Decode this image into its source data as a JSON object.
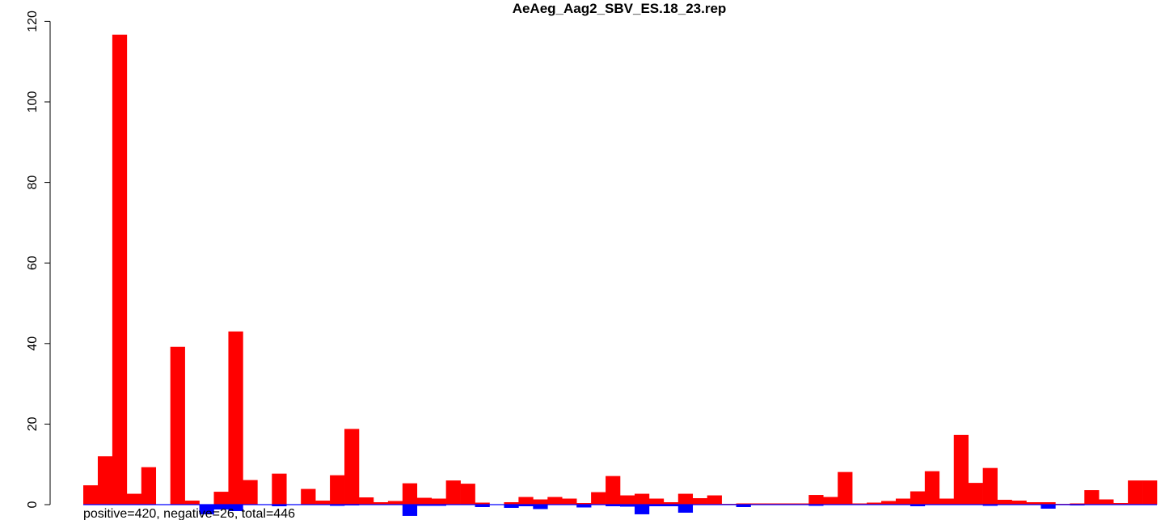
{
  "chart_data": {
    "type": "bar",
    "title": "AeAeg_Aag2_SBV_ES.18_23.rep",
    "xlabel": "",
    "ylabel": "",
    "ylim": [
      -3,
      120
    ],
    "y_ticks": [
      0,
      20,
      40,
      60,
      80,
      100,
      120
    ],
    "grid": false,
    "legend": "none",
    "footer": "positive=420, negative=26, total=446",
    "colors": {
      "positive": "#ff0000",
      "negative": "#0000ff",
      "axis": "#000000"
    },
    "series": [
      {
        "values": [
          4.8,
          12,
          116.7,
          2.7,
          9.3,
          0,
          39.2,
          1,
          0,
          3.2,
          43,
          6.1,
          0,
          7.7,
          0,
          3.9,
          1,
          7.3,
          18.8,
          1.8,
          0.6,
          0.9,
          5.3,
          1.7,
          1.5,
          6,
          5.2,
          0.5,
          0,
          0.6,
          1.9,
          1.3,
          1.9,
          1.5,
          0.4,
          3.1,
          7.1,
          2.3,
          2.7,
          1.5,
          0.6,
          2.7,
          1.6,
          2.3,
          0.2,
          0.3,
          0.3,
          0.3,
          0.3,
          0.3,
          2.4,
          1.9,
          8.1,
          0.3,
          0.5,
          0.9,
          1.5,
          3.3,
          8.3,
          1.5,
          17.3,
          5.4,
          9.1,
          1.2,
          1,
          0.6,
          0.6,
          0.2,
          0.3,
          3.6,
          1.3,
          0.4,
          6,
          6
        ]
      },
      {
        "values": [
          0,
          0,
          0,
          0,
          0,
          0,
          0,
          0,
          -2.4,
          -1.2,
          -1.6,
          0,
          0,
          -0.4,
          0,
          0,
          0,
          -0.3,
          -0.2,
          0,
          0,
          0,
          -2.8,
          -0.3,
          -0.3,
          0,
          0,
          -0.6,
          0,
          -0.8,
          -0.4,
          -1.1,
          0,
          0,
          -0.7,
          0,
          -0.4,
          -0.5,
          -2.4,
          -0.4,
          -0.4,
          -2,
          0,
          0,
          0,
          -0.6,
          0,
          0,
          0,
          0,
          -0.3,
          0,
          0,
          0,
          0,
          0,
          0,
          -0.4,
          0,
          0,
          0,
          0,
          -0.3,
          0,
          0,
          0,
          -1,
          0,
          -0.2,
          0,
          0,
          0,
          0,
          0
        ]
      }
    ]
  }
}
